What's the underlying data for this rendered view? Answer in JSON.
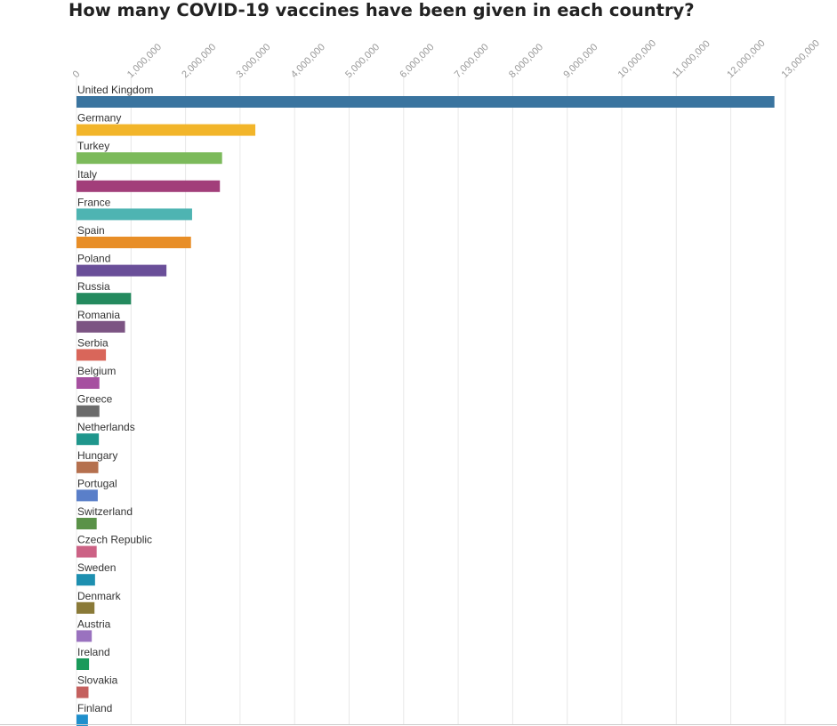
{
  "chart_data": {
    "type": "bar",
    "orientation": "horizontal",
    "title": "How many COVID-19 vaccines have been given in each country?",
    "xlabel": "",
    "ylabel": "",
    "xlim": [
      0,
      13000000
    ],
    "grid": true,
    "x_ticks": [
      0,
      1000000,
      2000000,
      3000000,
      4000000,
      5000000,
      6000000,
      7000000,
      8000000,
      9000000,
      10000000,
      11000000,
      12000000,
      13000000
    ],
    "x_tick_labels": [
      "0",
      "1,000,000",
      "2,000,000",
      "3,000,000",
      "4,000,000",
      "5,000,000",
      "6,000,000",
      "7,000,000",
      "8,000,000",
      "9,000,000",
      "10,000,000",
      "11,000,000",
      "12,000,000",
      "13,000,000"
    ],
    "categories": [
      "United Kingdom",
      "Germany",
      "Turkey",
      "Italy",
      "France",
      "Spain",
      "Poland",
      "Russia",
      "Romania",
      "Serbia",
      "Belgium",
      "Greece",
      "Netherlands",
      "Hungary",
      "Portugal",
      "Switzerland",
      "Czech Republic",
      "Sweden",
      "Denmark",
      "Austria",
      "Ireland",
      "Slovakia",
      "Finland"
    ],
    "values": [
      12800000,
      3280000,
      2670000,
      2630000,
      2120000,
      2100000,
      1650000,
      1000000,
      890000,
      540000,
      420000,
      420000,
      410000,
      400000,
      390000,
      370000,
      370000,
      340000,
      330000,
      280000,
      230000,
      220000,
      210000
    ],
    "colors": [
      "#3a749f",
      "#f2b52a",
      "#7cba5b",
      "#a23e7a",
      "#4eb4b2",
      "#e88e27",
      "#6a4f99",
      "#248a5e",
      "#7c5483",
      "#d9665a",
      "#a650a0",
      "#6b6b6b",
      "#1f968c",
      "#b5704e",
      "#5a7fc9",
      "#5a9248",
      "#cc6285",
      "#1d8fb0",
      "#8a7a38",
      "#9a72bf",
      "#1a9a5a",
      "#c4605e",
      "#1f8fcc"
    ]
  }
}
